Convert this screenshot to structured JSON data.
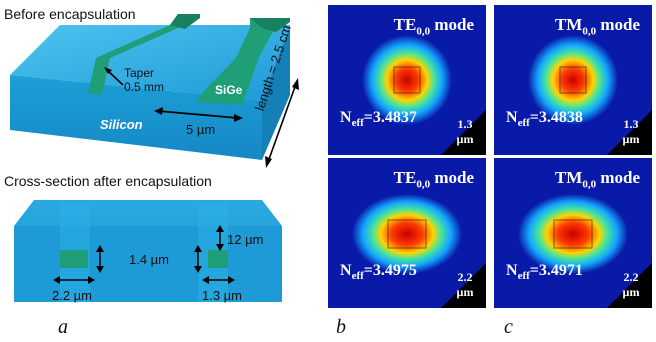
{
  "panel_a": {
    "title_top": "Before  encapsulation",
    "taper_label": "Taper",
    "taper_value": "0.5 mm",
    "sige_label": "SiGe",
    "silicon_label": "Silicon",
    "width_label": "5 µm",
    "length_label": "length = 2.5 cm",
    "title_bottom": "Cross-section after encapsulation",
    "dim_12": "12 µm",
    "dim_14": "1.4 µm",
    "dim_22": "2.2 µm",
    "dim_13": "1.3 µm"
  },
  "modes": [
    {
      "title_main": "TE",
      "title_sub": "0,0",
      "title_suffix": " mode",
      "neff_label": "N",
      "neff_sub": "eff",
      "neff_value": "=3.4837",
      "size_value": "1.3",
      "size_unit": "µm"
    },
    {
      "title_main": "TM",
      "title_sub": "0,0",
      "title_suffix": " mode",
      "neff_label": "N",
      "neff_sub": "eff",
      "neff_value": "=3.4838",
      "size_value": "1.3",
      "size_unit": "µm"
    },
    {
      "title_main": "TE",
      "title_sub": "0,0",
      "title_suffix": " mode",
      "neff_label": "N",
      "neff_sub": "eff",
      "neff_value": "=3.4975",
      "size_value": "2.2",
      "size_unit": "µm"
    },
    {
      "title_main": "TM",
      "title_sub": "0,0",
      "title_suffix": " mode",
      "neff_label": "N",
      "neff_sub": "eff",
      "neff_value": "=3.4971",
      "size_value": "2.2",
      "size_unit": "µm"
    }
  ],
  "panel_letters": {
    "a": "a",
    "b": "b",
    "c": "c"
  },
  "colors": {
    "silicon": "#1ea5dc",
    "sige": "#1f9e78",
    "field_bg": "#0a1aa8",
    "field_hot": "#e00000"
  }
}
